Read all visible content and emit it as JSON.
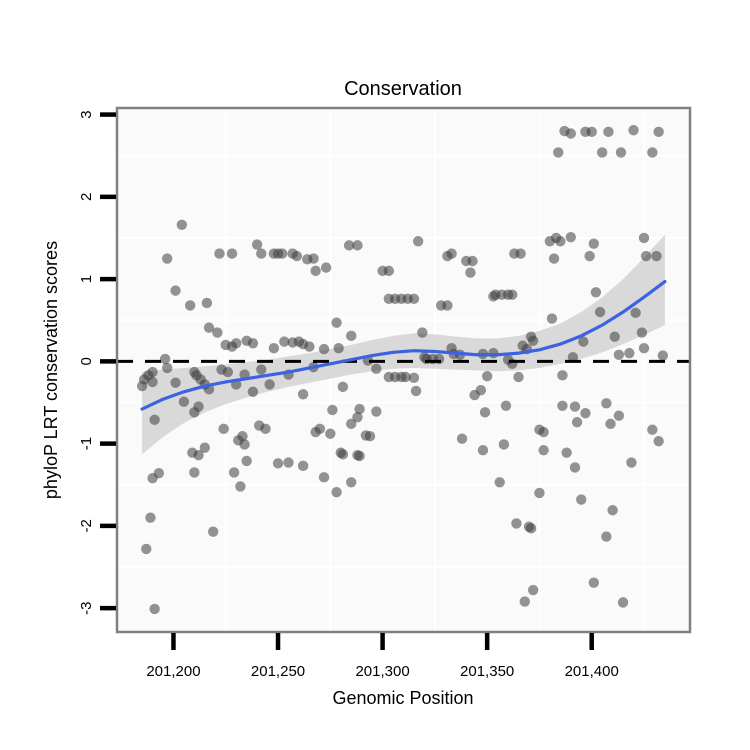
{
  "chart_data": {
    "type": "scatter",
    "title": "Conservation",
    "xlabel": "Genomic Position",
    "ylabel": "phyloP LRT conservation scores",
    "xlim": [
      201173,
      201447
    ],
    "ylim": [
      -3.29,
      3.08
    ],
    "grid": "minor-only-white-on-light-panel",
    "legend": "none",
    "x_ticks": [
      {
        "value": 201200,
        "label": "201,200"
      },
      {
        "value": 201250,
        "label": "201,250"
      },
      {
        "value": 201300,
        "label": "201,300"
      },
      {
        "value": 201350,
        "label": "201,350"
      },
      {
        "value": 201400,
        "label": "201,400"
      }
    ],
    "y_ticks": [
      {
        "value": 3,
        "label": "3"
      },
      {
        "value": 2,
        "label": "2"
      },
      {
        "value": 1,
        "label": "1"
      },
      {
        "value": 0,
        "label": "0"
      },
      {
        "value": -1,
        "label": "-1"
      },
      {
        "value": -2,
        "label": "-2"
      },
      {
        "value": -3,
        "label": "-3"
      }
    ],
    "x_gridlines": [
      201225,
      201275,
      201325,
      201375,
      201425
    ],
    "y_gridlines": [
      2.5,
      1.5,
      0.5,
      -0.5,
      -1.5,
      -2.5
    ],
    "zero_line": {
      "y": 0,
      "style": "dashed",
      "color": "#000000"
    },
    "colors": {
      "point": "#3c3c3c",
      "point_opacity": 0.55,
      "smooth_line": "#3b62e0",
      "band": "#d9d9d9",
      "panel_bg": "#fafafa",
      "grid": "#ffffff",
      "border": "#808080",
      "tick": "#000000"
    },
    "points": [
      [
        201204,
        1.66
      ],
      [
        201197,
        1.25
      ],
      [
        201222,
        1.31
      ],
      [
        201228,
        1.31
      ],
      [
        201240,
        1.42
      ],
      [
        201242,
        1.31
      ],
      [
        201248,
        1.31
      ],
      [
        201250,
        1.31
      ],
      [
        201252,
        1.31
      ],
      [
        201257,
        1.31
      ],
      [
        201259,
        1.28
      ],
      [
        201264,
        1.24
      ],
      [
        201267,
        1.25
      ],
      [
        201268,
        1.1
      ],
      [
        201273,
        1.14
      ],
      [
        201284,
        1.41
      ],
      [
        201288,
        1.41
      ],
      [
        201300,
        1.1
      ],
      [
        201303,
        1.1
      ],
      [
        201317,
        1.46
      ],
      [
        201331,
        1.28
      ],
      [
        201333,
        1.31
      ],
      [
        201340,
        1.22
      ],
      [
        201343,
        1.22
      ],
      [
        201342,
        1.08
      ],
      [
        201387,
        2.8
      ],
      [
        201390,
        2.77
      ],
      [
        201397,
        2.79
      ],
      [
        201400,
        2.79
      ],
      [
        201408,
        2.79
      ],
      [
        201420,
        2.81
      ],
      [
        201432,
        2.79
      ],
      [
        201384,
        2.54
      ],
      [
        201405,
        2.54
      ],
      [
        201414,
        2.54
      ],
      [
        201429,
        2.54
      ],
      [
        201380,
        1.46
      ],
      [
        201383,
        1.5
      ],
      [
        201385,
        1.46
      ],
      [
        201390,
        1.51
      ],
      [
        201401,
        1.43
      ],
      [
        201425,
        1.5
      ],
      [
        201363,
        1.31
      ],
      [
        201366,
        1.31
      ],
      [
        201382,
        1.25
      ],
      [
        201399,
        1.28
      ],
      [
        201426,
        1.28
      ],
      [
        201431,
        1.28
      ],
      [
        201201,
        0.86
      ],
      [
        201208,
        0.68
      ],
      [
        201216,
        0.71
      ],
      [
        201217,
        0.41
      ],
      [
        201221,
        0.35
      ],
      [
        201225,
        0.2
      ],
      [
        201228,
        0.18
      ],
      [
        201230,
        0.22
      ],
      [
        201235,
        0.25
      ],
      [
        201238,
        0.22
      ],
      [
        201248,
        0.16
      ],
      [
        201253,
        0.24
      ],
      [
        201257,
        0.23
      ],
      [
        201260,
        0.24
      ],
      [
        201196,
        0.03
      ],
      [
        201197,
        -0.08
      ],
      [
        201190,
        -0.13
      ],
      [
        201188,
        -0.17
      ],
      [
        201186,
        -0.22
      ],
      [
        201201,
        -0.26
      ],
      [
        201210,
        -0.13
      ],
      [
        201211,
        -0.17
      ],
      [
        201213,
        -0.22
      ],
      [
        201215,
        -0.28
      ],
      [
        201217,
        -0.34
      ],
      [
        201223,
        -0.1
      ],
      [
        201226,
        -0.13
      ],
      [
        201230,
        -0.28
      ],
      [
        201234,
        -0.16
      ],
      [
        201238,
        -0.37
      ],
      [
        201242,
        -0.1
      ],
      [
        201246,
        -0.28
      ],
      [
        201255,
        -0.16
      ],
      [
        201185,
        -0.3
      ],
      [
        201190,
        -0.25
      ],
      [
        201205,
        -0.49
      ],
      [
        201210,
        -0.62
      ],
      [
        201212,
        -0.55
      ],
      [
        201191,
        -0.71
      ],
      [
        201224,
        -0.82
      ],
      [
        201233,
        -0.91
      ],
      [
        201215,
        -1.05
      ],
      [
        201241,
        -0.78
      ],
      [
        201244,
        -0.82
      ],
      [
        201231,
        -0.96
      ],
      [
        201234,
        -1.01
      ],
      [
        201303,
        0.76
      ],
      [
        201306,
        0.76
      ],
      [
        201309,
        0.76
      ],
      [
        201312,
        0.76
      ],
      [
        201315,
        0.76
      ],
      [
        201353,
        0.79
      ],
      [
        201328,
        0.68
      ],
      [
        201331,
        0.68
      ],
      [
        201278,
        0.47
      ],
      [
        201285,
        0.31
      ],
      [
        201319,
        0.35
      ],
      [
        201262,
        0.21
      ],
      [
        201265,
        0.18
      ],
      [
        201272,
        0.15
      ],
      [
        201279,
        0.16
      ],
      [
        201267,
        -0.07
      ],
      [
        201281,
        -0.31
      ],
      [
        201293,
        0.01
      ],
      [
        201297,
        -0.09
      ],
      [
        201320,
        0.05
      ],
      [
        201333,
        0.16
      ],
      [
        201334,
        0.09
      ],
      [
        201337,
        0.08
      ],
      [
        201321,
        0.03
      ],
      [
        201324,
        0.03
      ],
      [
        201327,
        0.03
      ],
      [
        201348,
        0.09
      ],
      [
        201353,
        0.1
      ],
      [
        201303,
        -0.19
      ],
      [
        201306,
        -0.19
      ],
      [
        201309,
        -0.19
      ],
      [
        201311,
        -0.19
      ],
      [
        201315,
        -0.2
      ],
      [
        201316,
        -0.36
      ],
      [
        201262,
        -0.4
      ],
      [
        201276,
        -0.59
      ],
      [
        201289,
        -0.58
      ],
      [
        201297,
        -0.61
      ],
      [
        201285,
        -0.76
      ],
      [
        201288,
        -0.68
      ],
      [
        201268,
        -0.86
      ],
      [
        201270,
        -0.82
      ],
      [
        201275,
        -0.88
      ],
      [
        201292,
        -0.9
      ],
      [
        201294,
        -0.91
      ],
      [
        201280,
        -1.11
      ],
      [
        201288,
        -1.14
      ],
      [
        201338,
        -0.94
      ],
      [
        201349,
        -0.62
      ],
      [
        201347,
        -0.35
      ],
      [
        201350,
        -0.18
      ],
      [
        201344,
        -0.41
      ],
      [
        201348,
        -1.08
      ],
      [
        201354,
        0.81
      ],
      [
        201357,
        0.81
      ],
      [
        201360,
        0.81
      ],
      [
        201362,
        0.81
      ],
      [
        201402,
        0.84
      ],
      [
        201404,
        0.6
      ],
      [
        201421,
        0.59
      ],
      [
        201381,
        0.52
      ],
      [
        201367,
        0.19
      ],
      [
        201369,
        0.15
      ],
      [
        201372,
        0.25
      ],
      [
        201371,
        0.3
      ],
      [
        201396,
        0.24
      ],
      [
        201411,
        0.3
      ],
      [
        201424,
        0.35
      ],
      [
        201425,
        0.16
      ],
      [
        201418,
        0.1
      ],
      [
        201391,
        0.05
      ],
      [
        201360,
        0.02
      ],
      [
        201362,
        -0.03
      ],
      [
        201365,
        -0.19
      ],
      [
        201386,
        -0.17
      ],
      [
        201413,
        0.08
      ],
      [
        201434,
        0.07
      ],
      [
        201359,
        -0.54
      ],
      [
        201386,
        -0.54
      ],
      [
        201392,
        -0.55
      ],
      [
        201407,
        -0.51
      ],
      [
        201397,
        -0.63
      ],
      [
        201393,
        -0.74
      ],
      [
        201413,
        -0.66
      ],
      [
        201409,
        -0.76
      ],
      [
        201375,
        -0.83
      ],
      [
        201377,
        -0.86
      ],
      [
        201429,
        -0.83
      ],
      [
        201432,
        -0.97
      ],
      [
        201358,
        -1.01
      ],
      [
        201209,
        -1.11
      ],
      [
        201212,
        -1.14
      ],
      [
        201190,
        -1.42
      ],
      [
        201193,
        -1.36
      ],
      [
        201210,
        -1.35
      ],
      [
        201235,
        -1.21
      ],
      [
        201229,
        -1.35
      ],
      [
        201250,
        -1.24
      ],
      [
        201255,
        -1.23
      ],
      [
        201262,
        -1.27
      ],
      [
        201232,
        -1.52
      ],
      [
        201189,
        -1.9
      ],
      [
        201219,
        -2.07
      ],
      [
        201187,
        -2.28
      ],
      [
        201191,
        -3.01
      ],
      [
        201281,
        -1.13
      ],
      [
        201289,
        -1.15
      ],
      [
        201272,
        -1.41
      ],
      [
        201285,
        -1.47
      ],
      [
        201278,
        -1.59
      ],
      [
        201377,
        -1.08
      ],
      [
        201388,
        -1.11
      ],
      [
        201392,
        -1.29
      ],
      [
        201419,
        -1.23
      ],
      [
        201356,
        -1.47
      ],
      [
        201375,
        -1.6
      ],
      [
        201395,
        -1.68
      ],
      [
        201410,
        -1.81
      ],
      [
        201364,
        -1.97
      ],
      [
        201370,
        -2.01
      ],
      [
        201371,
        -2.03
      ],
      [
        201407,
        -2.13
      ],
      [
        201401,
        -2.69
      ],
      [
        201372,
        -2.78
      ],
      [
        201368,
        -2.92
      ],
      [
        201415,
        -2.93
      ]
    ],
    "smooth": {
      "x": [
        201185,
        201195,
        201205,
        201215,
        201225,
        201235,
        201245,
        201255,
        201265,
        201275,
        201285,
        201295,
        201305,
        201315,
        201325,
        201335,
        201345,
        201355,
        201365,
        201375,
        201385,
        201395,
        201405,
        201415,
        201425,
        201435
      ],
      "y": [
        -0.58,
        -0.46,
        -0.37,
        -0.3,
        -0.25,
        -0.21,
        -0.17,
        -0.13,
        -0.08,
        -0.03,
        0.02,
        0.07,
        0.11,
        0.13,
        0.12,
        0.1,
        0.08,
        0.08,
        0.1,
        0.14,
        0.21,
        0.31,
        0.44,
        0.6,
        0.78,
        0.97
      ],
      "upper": [
        -0.13,
        -0.1,
        -0.08,
        -0.06,
        -0.04,
        -0.01,
        0.02,
        0.06,
        0.1,
        0.15,
        0.2,
        0.26,
        0.31,
        0.34,
        0.33,
        0.3,
        0.28,
        0.28,
        0.31,
        0.37,
        0.46,
        0.6,
        0.78,
        1.0,
        1.26,
        1.54
      ],
      "lower": [
        -1.13,
        -0.92,
        -0.75,
        -0.62,
        -0.52,
        -0.44,
        -0.37,
        -0.31,
        -0.26,
        -0.21,
        -0.16,
        -0.12,
        -0.09,
        -0.08,
        -0.09,
        -0.1,
        -0.11,
        -0.12,
        -0.11,
        -0.08,
        -0.03,
        0.03,
        0.11,
        0.21,
        0.32,
        0.44
      ]
    }
  }
}
